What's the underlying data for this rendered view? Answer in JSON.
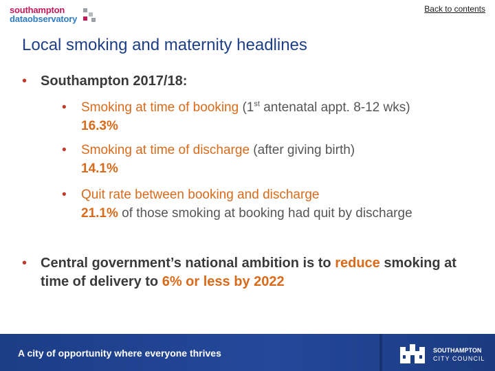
{
  "logo": {
    "line1": "southampton",
    "line2": "dataobservatory"
  },
  "nav": {
    "back_label": "Back to contents"
  },
  "title": "Local smoking and maternity headlines",
  "bullets": {
    "b1": "Southampton 2017/18:",
    "sub1": {
      "label": "Smoking at time of booking",
      "detail_pre": "(1",
      "detail_sup": "st",
      "detail_post": " antenatal appt. 8-12 wks)",
      "value": "16.3%"
    },
    "sub2": {
      "label": "Smoking at time of discharge",
      "detail": "(after giving birth)",
      "value": "14.1%"
    },
    "sub3": {
      "label": "Quit rate between booking and discharge",
      "value": "21.1%",
      "value_suffix": "of those smoking at booking had quit by discharge"
    },
    "b2": {
      "pre": "Central government’s national ambition is to",
      "highlight1": "reduce",
      "mid": "smoking at time of delivery to",
      "highlight2": "6% or less by 2022"
    }
  },
  "footer": {
    "tagline": "A city of opportunity where everyone thrives",
    "council_line1": "SOUTHAMPTON",
    "council_line2": "CITY COUNCIL"
  },
  "colors": {
    "title": "#1e3f87",
    "accent": "#d96a1a",
    "bullet": "#c0392b",
    "footer_bg": "#1d3d86"
  }
}
